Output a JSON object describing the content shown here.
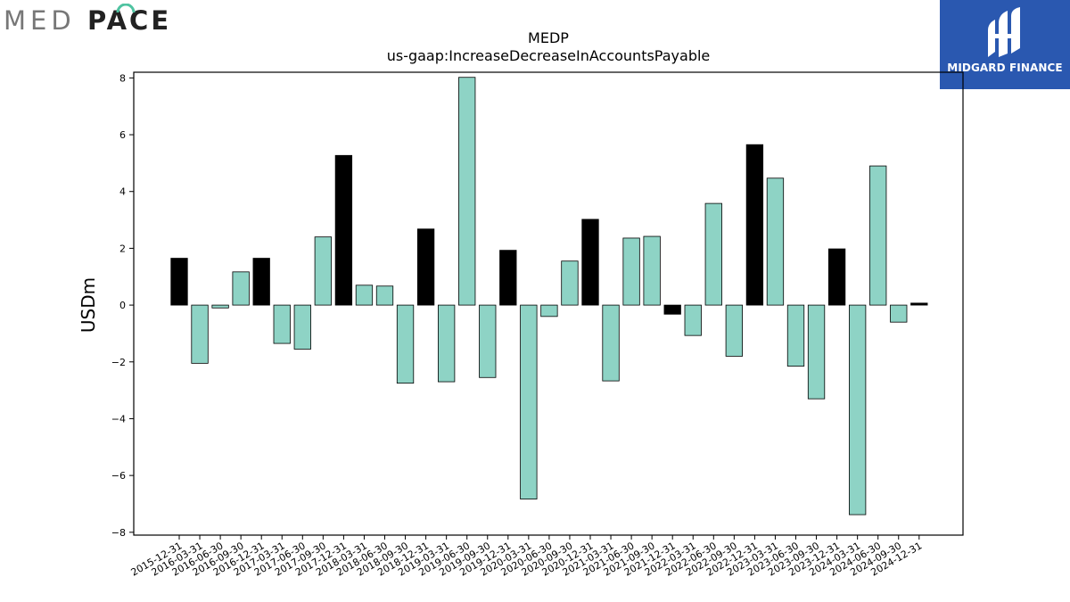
{
  "logo": {
    "left_text_light": "MED",
    "left_text_bold": "PACE",
    "right_brand": "MIDGARD FINANCE",
    "colors": {
      "brand_box": "#2a58b0",
      "medpace_gray": "#777777",
      "medpace_teal": "#4fc3a1"
    }
  },
  "chart_data": {
    "type": "bar",
    "title": "MEDP",
    "subtitle": "us-gaap:IncreaseDecreaseInAccountsPayable",
    "xlabel": "",
    "ylabel": "USDm",
    "ylim": [
      -8.1,
      8.2
    ],
    "yticks": [
      8,
      6,
      4,
      2,
      0,
      -2,
      -4,
      -6,
      -8
    ],
    "ytick_labels": [
      "8",
      "6",
      "4",
      "2",
      "0",
      "−2",
      "−4",
      "−6",
      "−8"
    ],
    "grid": false,
    "colors": {
      "quarter": "#8ed3c5",
      "year_end": "#000000"
    },
    "categories": [
      "2015-12-31",
      "2016-03-31",
      "2016-06-30",
      "2016-09-30",
      "2016-12-31",
      "2017-03-31",
      "2017-06-30",
      "2017-09-30",
      "2017-12-31",
      "2018-03-31",
      "2018-06-30",
      "2018-09-30",
      "2018-12-31",
      "2019-03-31",
      "2019-06-30",
      "2019-09-30",
      "2019-12-31",
      "2020-03-31",
      "2020-06-30",
      "2020-09-30",
      "2020-12-31",
      "2021-03-31",
      "2021-06-30",
      "2021-09-30",
      "2021-12-31",
      "2022-03-31",
      "2022-06-30",
      "2022-09-30",
      "2022-12-31",
      "2023-03-31",
      "2023-06-30",
      "2023-09-30",
      "2023-12-31",
      "2024-03-31",
      "2024-06-30",
      "2024-09-30",
      "2024-12-31"
    ],
    "values": [
      1.65,
      -2.05,
      -0.1,
      1.17,
      1.65,
      -1.35,
      -1.55,
      2.4,
      5.27,
      0.7,
      0.67,
      -2.75,
      2.68,
      -2.7,
      8.02,
      -2.55,
      1.93,
      -6.83,
      -0.4,
      1.55,
      3.02,
      -2.67,
      2.36,
      2.42,
      -0.32,
      -1.07,
      3.58,
      -1.8,
      5.65,
      4.47,
      -2.15,
      -3.3,
      1.98,
      -7.38,
      4.9,
      -0.6,
      0.07
    ],
    "year_end": [
      true,
      false,
      false,
      false,
      true,
      false,
      false,
      false,
      true,
      false,
      false,
      false,
      true,
      false,
      false,
      false,
      true,
      false,
      false,
      false,
      true,
      false,
      false,
      false,
      true,
      false,
      false,
      false,
      true,
      false,
      false,
      false,
      true,
      false,
      false,
      false,
      true
    ]
  }
}
